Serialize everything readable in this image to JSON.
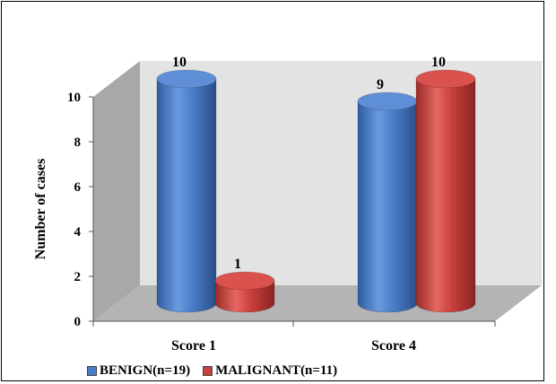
{
  "chart_data": {
    "type": "bar",
    "style": "3d-cylinder",
    "title": "",
    "ylabel": "Number of cases",
    "xlabel": "",
    "categories": [
      "Score 1",
      "Score 4"
    ],
    "series": [
      {
        "name": "BENIGN(n=19)",
        "values": [
          10,
          9
        ],
        "data_labels": [
          "10",
          "9"
        ],
        "color": "#4A7DC8"
      },
      {
        "name": "MALIGNANT(n=11)",
        "values": [
          1,
          10
        ],
        "data_labels": [
          "1",
          "10"
        ],
        "color": "#C9403C"
      }
    ],
    "ylim": [
      0,
      10
    ],
    "yticks": [
      "0",
      "2",
      "4",
      "6",
      "8",
      "10"
    ],
    "grid": false,
    "legend_position": "bottom",
    "wall_color": "#E3E3E3",
    "side_wall_color": "#A8A8A8",
    "floor_color": "#B4B4B4"
  }
}
